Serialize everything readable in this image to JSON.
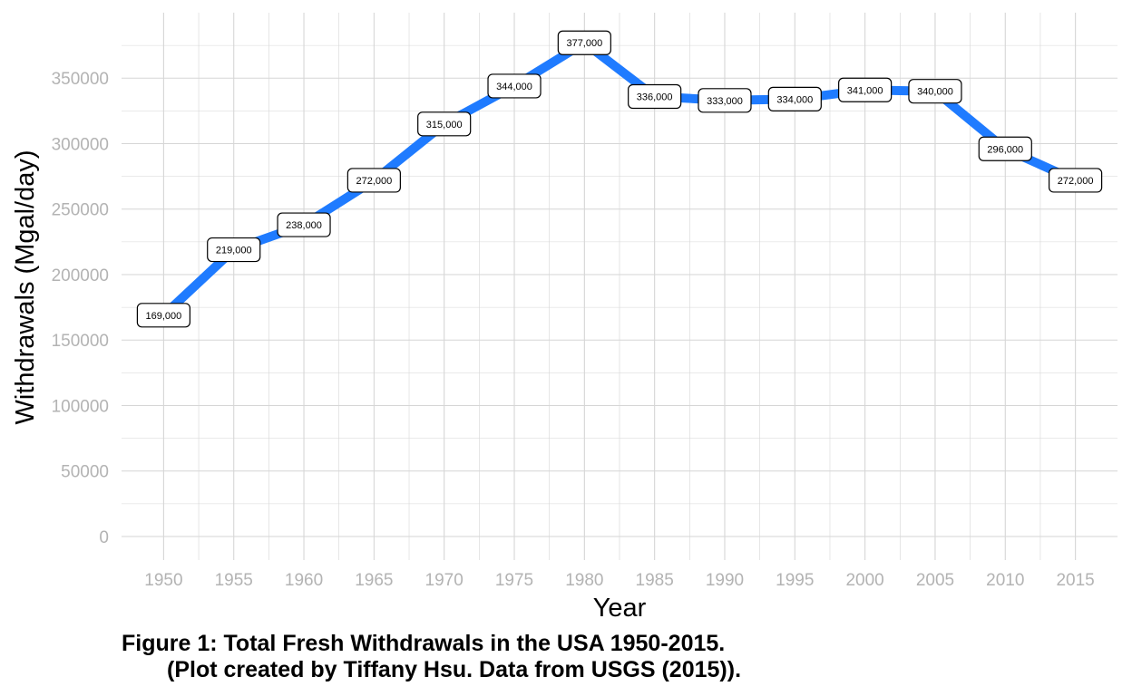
{
  "chart_data": {
    "type": "line",
    "title": "",
    "xlabel": "Year",
    "ylabel": "Withdrawals (Mgal/day)",
    "x": [
      1950,
      1955,
      1960,
      1965,
      1970,
      1975,
      1980,
      1985,
      1990,
      1995,
      2000,
      2005,
      2010,
      2015
    ],
    "series": [
      {
        "values": [
          169000,
          219000,
          238000,
          272000,
          315000,
          344000,
          377000,
          336000,
          333000,
          334000,
          341000,
          340000,
          296000,
          272000
        ],
        "labels": [
          "169,000",
          "219,000",
          "238,000",
          "272,000",
          "315,000",
          "344,000",
          "377,000",
          "336,000",
          "333,000",
          "334,000",
          "341,000",
          "340,000",
          "296,000",
          "272,000"
        ]
      }
    ],
    "xticks": [
      1950,
      1955,
      1960,
      1965,
      1970,
      1975,
      1980,
      1985,
      1990,
      1995,
      2000,
      2005,
      2010,
      2015
    ],
    "xtick_labels": [
      "1950",
      "1955",
      "1960",
      "1965",
      "1970",
      "1975",
      "1980",
      "1985",
      "1990",
      "1995",
      "2000",
      "2005",
      "2010",
      "2015"
    ],
    "yticks": [
      0,
      50000,
      100000,
      150000,
      200000,
      250000,
      300000,
      350000
    ],
    "ytick_labels": [
      "0",
      "50000",
      "100000",
      "150000",
      "200000",
      "250000",
      "300000",
      "350000"
    ],
    "xlim": [
      1947,
      2018
    ],
    "ylim": [
      -18000,
      400000
    ],
    "grid": true,
    "legend": "none",
    "colors": {
      "line": "#1f7bff",
      "grid": "#d6d6d6",
      "tick_text": "#b3b3b3"
    }
  },
  "caption": {
    "line1": "Figure 1: Total Fresh Withdrawals in the USA 1950-2015.",
    "line2": "(Plot created by Tiffany Hsu. Data from USGS (2015))."
  }
}
